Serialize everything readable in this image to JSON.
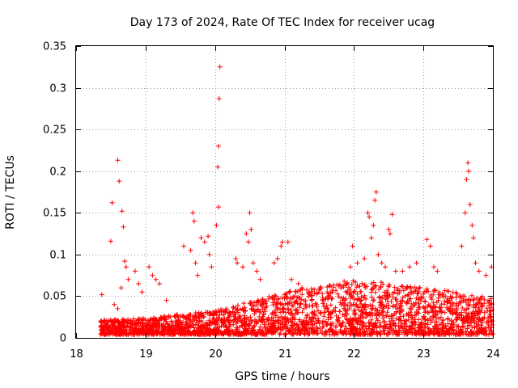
{
  "chart_data": {
    "type": "scatter",
    "title": "Day 173 of 2024, Rate Of TEC Index for receiver ucag",
    "xlabel": "GPS time / hours",
    "ylabel": "ROTI / TECUs",
    "xlim": [
      18,
      24
    ],
    "ylim": [
      0,
      0.35
    ],
    "x_ticks": [
      18,
      19,
      20,
      21,
      22,
      23,
      24
    ],
    "y_ticks": [
      0,
      0.05,
      0.1,
      0.15,
      0.2,
      0.25,
      0.3,
      0.35
    ],
    "x_tick_labels": [
      "18",
      "19",
      "20",
      "21",
      "22",
      "23",
      "24"
    ],
    "y_tick_labels": [
      "0",
      "0.05",
      "0.1",
      "0.15",
      "0.2",
      "0.25",
      "0.3",
      "0.35"
    ],
    "grid": true,
    "marker": "plus",
    "color": "#ff0000",
    "series": [
      {
        "name": "ROTI",
        "points": [
          [
            18.37,
            0.052
          ],
          [
            18.5,
            0.116
          ],
          [
            18.52,
            0.162
          ],
          [
            18.6,
            0.213
          ],
          [
            18.62,
            0.188
          ],
          [
            18.66,
            0.152
          ],
          [
            18.68,
            0.133
          ],
          [
            18.7,
            0.092
          ],
          [
            18.72,
            0.085
          ],
          [
            18.75,
            0.07
          ],
          [
            18.55,
            0.04
          ],
          [
            18.6,
            0.035
          ],
          [
            18.65,
            0.06
          ],
          [
            18.85,
            0.08
          ],
          [
            18.9,
            0.065
          ],
          [
            18.95,
            0.055
          ],
          [
            19.05,
            0.085
          ],
          [
            19.1,
            0.075
          ],
          [
            19.15,
            0.07
          ],
          [
            19.2,
            0.065
          ],
          [
            19.3,
            0.045
          ],
          [
            19.55,
            0.11
          ],
          [
            19.65,
            0.105
          ],
          [
            19.68,
            0.15
          ],
          [
            19.7,
            0.14
          ],
          [
            19.72,
            0.09
          ],
          [
            19.75,
            0.075
          ],
          [
            19.8,
            0.12
          ],
          [
            19.85,
            0.115
          ],
          [
            19.9,
            0.122
          ],
          [
            19.92,
            0.1
          ],
          [
            19.95,
            0.085
          ],
          [
            20.02,
            0.135
          ],
          [
            20.04,
            0.205
          ],
          [
            20.05,
            0.23
          ],
          [
            20.06,
            0.287
          ],
          [
            20.07,
            0.325
          ],
          [
            20.05,
            0.157
          ],
          [
            20.3,
            0.095
          ],
          [
            20.32,
            0.09
          ],
          [
            20.4,
            0.085
          ],
          [
            20.45,
            0.125
          ],
          [
            20.48,
            0.115
          ],
          [
            20.5,
            0.15
          ],
          [
            20.52,
            0.13
          ],
          [
            20.55,
            0.09
          ],
          [
            20.6,
            0.08
          ],
          [
            20.65,
            0.07
          ],
          [
            20.85,
            0.09
          ],
          [
            20.9,
            0.095
          ],
          [
            20.95,
            0.11
          ],
          [
            20.97,
            0.115
          ],
          [
            21.05,
            0.115
          ],
          [
            21.1,
            0.07
          ],
          [
            21.2,
            0.065
          ],
          [
            21.25,
            0.06
          ],
          [
            21.95,
            0.085
          ],
          [
            21.98,
            0.11
          ],
          [
            22.05,
            0.09
          ],
          [
            22.15,
            0.095
          ],
          [
            22.2,
            0.15
          ],
          [
            22.22,
            0.145
          ],
          [
            22.25,
            0.12
          ],
          [
            22.28,
            0.135
          ],
          [
            22.3,
            0.165
          ],
          [
            22.32,
            0.175
          ],
          [
            22.35,
            0.1
          ],
          [
            22.4,
            0.09
          ],
          [
            22.45,
            0.085
          ],
          [
            22.5,
            0.13
          ],
          [
            22.55,
            0.148
          ],
          [
            22.52,
            0.125
          ],
          [
            22.6,
            0.08
          ],
          [
            22.7,
            0.08
          ],
          [
            22.8,
            0.085
          ],
          [
            22.9,
            0.09
          ],
          [
            23.05,
            0.118
          ],
          [
            23.1,
            0.11
          ],
          [
            23.15,
            0.085
          ],
          [
            23.2,
            0.08
          ],
          [
            23.55,
            0.11
          ],
          [
            23.6,
            0.15
          ],
          [
            23.62,
            0.19
          ],
          [
            23.64,
            0.21
          ],
          [
            23.65,
            0.2
          ],
          [
            23.67,
            0.16
          ],
          [
            23.7,
            0.135
          ],
          [
            23.72,
            0.12
          ],
          [
            23.75,
            0.09
          ],
          [
            23.8,
            0.08
          ],
          [
            23.9,
            0.075
          ],
          [
            23.98,
            0.085
          ]
        ]
      }
    ],
    "dense_band": {
      "note": "dense cluster of observations from 18.35 h to 24 h",
      "x_range": [
        18.35,
        24.0
      ],
      "base_low_y": 0.004,
      "base_high_y_by_hour": [
        [
          18.35,
          0.02
        ],
        [
          19.0,
          0.022
        ],
        [
          20.0,
          0.03
        ],
        [
          21.0,
          0.05
        ],
        [
          22.0,
          0.065
        ],
        [
          23.0,
          0.055
        ],
        [
          24.0,
          0.045
        ]
      ],
      "count": 2600
    }
  }
}
